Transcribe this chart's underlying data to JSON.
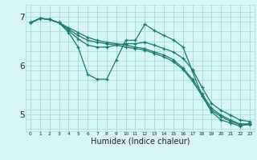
{
  "xlabel": "Humidex (Indice chaleur)",
  "background_color": "#d6f5f5",
  "grid_color": "#b0dada",
  "line_color": "#1a7a6e",
  "xlim": [
    -0.5,
    23.5
  ],
  "ylim": [
    4.65,
    7.25
  ],
  "yticks": [
    5,
    6,
    7
  ],
  "xtick_labels": [
    "0",
    "1",
    "2",
    "3",
    "4",
    "5",
    "6",
    "7",
    "8",
    "9",
    "10",
    "11",
    "12",
    "13",
    "14",
    "15",
    "16",
    "17",
    "18",
    "19",
    "20",
    "21",
    "22",
    "23"
  ],
  "line1_x": [
    0,
    1,
    2,
    3,
    4,
    5,
    6,
    7,
    8,
    9,
    10,
    11,
    12,
    13,
    14,
    15,
    16,
    17,
    18,
    19,
    20,
    21,
    22,
    23
  ],
  "line1_y": [
    6.88,
    6.97,
    6.95,
    6.88,
    6.68,
    6.38,
    5.82,
    5.72,
    5.72,
    6.12,
    6.52,
    6.52,
    6.85,
    6.72,
    6.62,
    6.53,
    6.38,
    5.88,
    5.38,
    5.05,
    4.88,
    4.82,
    4.75,
    4.82
  ],
  "line2_x": [
    0,
    1,
    2,
    3,
    4,
    5,
    6,
    7,
    8,
    9,
    10,
    11,
    12,
    13,
    14,
    15,
    16,
    17,
    18,
    19,
    20,
    21,
    22,
    23
  ],
  "line2_y": [
    6.88,
    6.97,
    6.95,
    6.88,
    6.72,
    6.55,
    6.42,
    6.38,
    6.38,
    6.42,
    6.45,
    6.45,
    6.48,
    6.42,
    6.35,
    6.28,
    6.15,
    5.92,
    5.55,
    5.22,
    5.08,
    4.98,
    4.88,
    4.85
  ],
  "line3_x": [
    0,
    1,
    2,
    3,
    4,
    5,
    6,
    7,
    8,
    9,
    10,
    11,
    12,
    13,
    14,
    15,
    16,
    17,
    18,
    19,
    20,
    21,
    22,
    23
  ],
  "line3_y": [
    6.88,
    6.97,
    6.95,
    6.88,
    6.75,
    6.62,
    6.52,
    6.48,
    6.45,
    6.42,
    6.38,
    6.35,
    6.32,
    6.25,
    6.18,
    6.08,
    5.92,
    5.68,
    5.38,
    5.08,
    4.95,
    4.85,
    4.78,
    4.78
  ],
  "line4_x": [
    0,
    1,
    2,
    3,
    4,
    5,
    6,
    7,
    8,
    9,
    10,
    11,
    12,
    13,
    14,
    15,
    16,
    17,
    18,
    19,
    20,
    21,
    22,
    23
  ],
  "line4_y": [
    6.88,
    6.97,
    6.95,
    6.88,
    6.78,
    6.68,
    6.58,
    6.52,
    6.48,
    6.45,
    6.42,
    6.38,
    6.35,
    6.28,
    6.22,
    6.12,
    5.95,
    5.72,
    5.42,
    5.12,
    4.98,
    4.88,
    4.8,
    4.8
  ]
}
